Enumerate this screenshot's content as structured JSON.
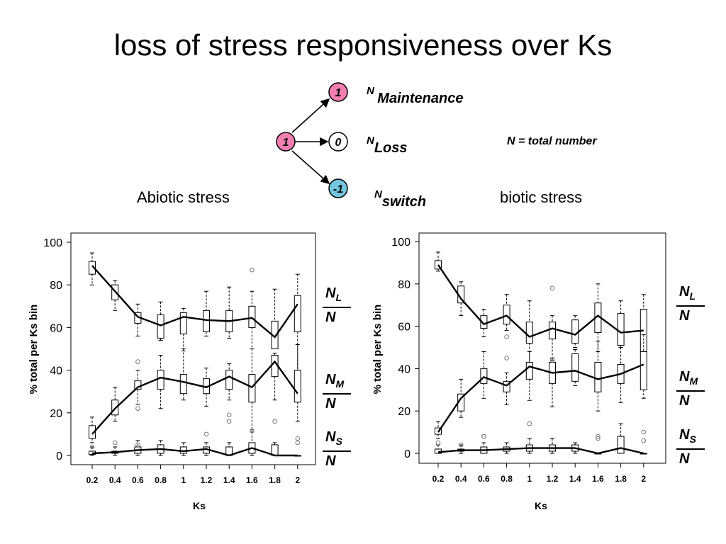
{
  "title": "loss of stress responsiveness over Ks",
  "diagram": {
    "source_node": "1",
    "target_nodes": [
      "1",
      "0",
      "-1"
    ],
    "labels": [
      {
        "sup": "N",
        "main": "Maintenance"
      },
      {
        "sup": "N",
        "main": "Loss"
      },
      {
        "sup": "N",
        "main": "switch"
      }
    ],
    "colors": {
      "pink": "#f27fb2",
      "white": "#ffffff",
      "blue": "#72c6de"
    }
  },
  "note": "N = total number",
  "panel_titles": {
    "left": "Abiotic stress",
    "right": "biotic stress"
  },
  "fractions": [
    {
      "num": "N",
      "sub": "L",
      "den": "N"
    },
    {
      "num": "N",
      "sub": "M",
      "den": "N"
    },
    {
      "num": "N",
      "sub": "S",
      "den": "N"
    }
  ],
  "chart_data": [
    {
      "type": "box",
      "title": "Abiotic stress",
      "xlabel": "Ks",
      "ylabel": "% total per Ks bin",
      "categories": [
        "0.2",
        "0.4",
        "0.6",
        "0.8",
        "1",
        "1.2",
        "1.4",
        "1.6",
        "1.8",
        "2"
      ],
      "yticks": [
        "0",
        "20",
        "40",
        "60",
        "80",
        "100"
      ],
      "ylim": [
        0,
        100
      ],
      "series": [
        {
          "name": "NL/N",
          "line": [
            89,
            77,
            65,
            61,
            65,
            63.5,
            63,
            64.5,
            55.5,
            71
          ],
          "boxes": [
            {
              "wlo": 80,
              "q1": 85,
              "q3": 91,
              "whi": 95
            },
            {
              "wlo": 68,
              "q1": 73,
              "q3": 80,
              "whi": 82
            },
            {
              "wlo": 56,
              "q1": 62,
              "q3": 67,
              "whi": 71
            },
            {
              "wlo": 54,
              "q1": 55,
              "q3": 66,
              "whi": 72
            },
            {
              "wlo": 49,
              "q1": 57,
              "q3": 67,
              "whi": 69
            },
            {
              "wlo": 56,
              "q1": 58,
              "q3": 68,
              "whi": 77
            },
            {
              "wlo": 55,
              "q1": 58,
              "q3": 68,
              "whi": 79
            },
            {
              "wlo": 50,
              "q1": 60,
              "q3": 70,
              "whi": 77
            },
            {
              "wlo": 50,
              "q1": 50,
              "q3": 63,
              "whi": 78
            },
            {
              "wlo": 40,
              "q1": 58,
              "q3": 75,
              "whi": 85
            }
          ],
          "outliers": [
            [
              7,
              87
            ]
          ]
        },
        {
          "name": "NM/N",
          "line": [
            10,
            22,
            32,
            36.5,
            34.5,
            32,
            37,
            32,
            44,
            29
          ],
          "boxes": [
            {
              "wlo": 6,
              "q1": 8,
              "q3": 14,
              "whi": 18
            },
            {
              "wlo": 16,
              "q1": 19,
              "q3": 26,
              "whi": 32
            },
            {
              "wlo": 24,
              "q1": 31,
              "q3": 35,
              "whi": 40
            },
            {
              "wlo": 22,
              "q1": 31,
              "q3": 40,
              "whi": 47
            },
            {
              "wlo": 26,
              "q1": 29,
              "q3": 38,
              "whi": 50
            },
            {
              "wlo": 23,
              "q1": 29,
              "q3": 36,
              "whi": 41
            },
            {
              "wlo": 26,
              "q1": 31,
              "q3": 40,
              "whi": 43
            },
            {
              "wlo": 12,
              "q1": 25,
              "q3": 38,
              "whi": 50
            },
            {
              "wlo": 26,
              "q1": 37,
              "q3": 47,
              "whi": 48
            },
            {
              "wlo": 16,
              "q1": 25,
              "q3": 40,
              "whi": 52
            }
          ],
          "outliers": [
            [
              2,
              44
            ],
            [
              2,
              22
            ],
            [
              6,
              19
            ],
            [
              6,
              16
            ],
            [
              8,
              16
            ]
          ]
        },
        {
          "name": "NS/N",
          "line": [
            1,
            1.5,
            2.5,
            3,
            2,
            3,
            0,
            3.5,
            0,
            0
          ],
          "boxes": [
            {
              "wlo": 0,
              "q1": 0.5,
              "q3": 2,
              "whi": 4
            },
            {
              "wlo": 0,
              "q1": 1,
              "q3": 2,
              "whi": 4
            },
            {
              "wlo": 0,
              "q1": 1,
              "q3": 4,
              "whi": 7
            },
            {
              "wlo": 0,
              "q1": 1,
              "q3": 5,
              "whi": 7
            },
            {
              "wlo": 0,
              "q1": 1,
              "q3": 4,
              "whi": 6
            },
            {
              "wlo": 0,
              "q1": 1,
              "q3": 4,
              "whi": 6
            },
            {
              "wlo": 0,
              "q1": 0,
              "q3": 4,
              "whi": 6
            },
            {
              "wlo": 0,
              "q1": 1,
              "q3": 6,
              "whi": 11
            },
            {
              "wlo": 0,
              "q1": 0,
              "q3": 5,
              "whi": 6
            },
            {
              "wlo": 0,
              "q1": 0,
              "q3": 0,
              "whi": 0
            }
          ],
          "outliers": [
            [
              0,
              4
            ],
            [
              1,
              6
            ],
            [
              2,
              5
            ],
            [
              5,
              10
            ],
            [
              9,
              8
            ],
            [
              9,
              6
            ]
          ]
        }
      ]
    },
    {
      "type": "box",
      "title": "biotic stress",
      "xlabel": "Ks",
      "ylabel": "% total per Ks bin",
      "categories": [
        "0.2",
        "0.4",
        "0.6",
        "0.8",
        "1",
        "1.2",
        "1.4",
        "1.6",
        "1.8",
        "2"
      ],
      "yticks": [
        "0",
        "20",
        "40",
        "60",
        "80",
        "100"
      ],
      "ylim": [
        0,
        100
      ],
      "series": [
        {
          "name": "NL/N",
          "line": [
            89,
            73,
            61,
            65,
            55,
            59,
            56,
            65,
            57,
            58
          ],
          "boxes": [
            {
              "wlo": 86,
              "q1": 87,
              "q3": 91,
              "whi": 95
            },
            {
              "wlo": 65,
              "q1": 71,
              "q3": 79,
              "whi": 81
            },
            {
              "wlo": 55,
              "q1": 59,
              "q3": 65,
              "whi": 68
            },
            {
              "wlo": 58,
              "q1": 61,
              "q3": 70,
              "whi": 75
            },
            {
              "wlo": 38,
              "q1": 52,
              "q3": 62,
              "whi": 72
            },
            {
              "wlo": 44,
              "q1": 54,
              "q3": 62,
              "whi": 65
            },
            {
              "wlo": 50,
              "q1": 52,
              "q3": 63,
              "whi": 65
            },
            {
              "wlo": 48,
              "q1": 57,
              "q3": 71,
              "whi": 80
            },
            {
              "wlo": 50,
              "q1": 51,
              "q3": 66,
              "whi": 72
            },
            {
              "wlo": 45,
              "q1": 48,
              "q3": 68,
              "whi": 75
            }
          ],
          "outliers": [
            [
              5,
              78
            ]
          ]
        },
        {
          "name": "NM/N",
          "line": [
            10,
            26,
            36,
            32,
            41,
            38,
            39,
            35,
            37.5,
            42
          ],
          "boxes": [
            {
              "wlo": 7,
              "q1": 9,
              "q3": 12,
              "whi": 15
            },
            {
              "wlo": 17,
              "q1": 20,
              "q3": 28,
              "whi": 35
            },
            {
              "wlo": 26,
              "q1": 33,
              "q3": 40,
              "whi": 48
            },
            {
              "wlo": 23,
              "q1": 29,
              "q3": 34,
              "whi": 38
            },
            {
              "wlo": 25,
              "q1": 35,
              "q3": 43,
              "whi": 48
            },
            {
              "wlo": 22,
              "q1": 33,
              "q3": 43,
              "whi": 45
            },
            {
              "wlo": 32,
              "q1": 34,
              "q3": 47,
              "whi": 49
            },
            {
              "wlo": 20,
              "q1": 29,
              "q3": 43,
              "whi": 53
            },
            {
              "wlo": 24,
              "q1": 33,
              "q3": 42,
              "whi": 50
            },
            {
              "wlo": 26,
              "q1": 30,
              "q3": 48,
              "whi": 56
            }
          ],
          "outliers": [
            [
              3,
              45
            ],
            [
              3,
              55
            ],
            [
              4,
              14
            ],
            [
              5,
              44
            ],
            [
              2,
              8
            ]
          ]
        },
        {
          "name": "NS/N",
          "line": [
            0.5,
            1.5,
            1.5,
            2,
            2.5,
            2.5,
            2.5,
            0,
            2.5,
            0
          ],
          "boxes": [
            {
              "wlo": 0,
              "q1": 0,
              "q3": 2,
              "whi": 4
            },
            {
              "wlo": 0,
              "q1": 1,
              "q3": 2,
              "whi": 4
            },
            {
              "wlo": 0,
              "q1": 0,
              "q3": 3,
              "whi": 5
            },
            {
              "wlo": 0,
              "q1": 1,
              "q3": 3,
              "whi": 5
            },
            {
              "wlo": 0,
              "q1": 1,
              "q3": 4,
              "whi": 7
            },
            {
              "wlo": 0,
              "q1": 1,
              "q3": 4,
              "whi": 7
            },
            {
              "wlo": 0,
              "q1": 1,
              "q3": 4,
              "whi": 5
            },
            {
              "wlo": 0,
              "q1": 0,
              "q3": 0,
              "whi": 0
            },
            {
              "wlo": 0,
              "q1": 0,
              "q3": 8,
              "whi": 14
            },
            {
              "wlo": 0,
              "q1": 0,
              "q3": 0,
              "whi": 0
            }
          ],
          "outliers": [
            [
              0,
              5
            ],
            [
              1,
              4
            ],
            [
              2,
              8
            ],
            [
              7,
              8
            ],
            [
              7,
              7
            ],
            [
              9,
              10
            ],
            [
              9,
              6
            ]
          ]
        }
      ]
    }
  ]
}
